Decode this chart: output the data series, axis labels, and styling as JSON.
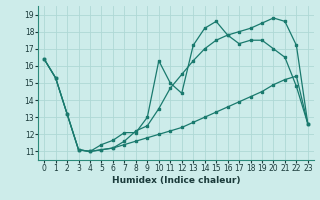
{
  "xlabel": "Humidex (Indice chaleur)",
  "background_color": "#cdecea",
  "line_color": "#1a7a6e",
  "grid_color": "#afd8d5",
  "x_ticks": [
    0,
    1,
    2,
    3,
    4,
    5,
    6,
    7,
    8,
    9,
    10,
    11,
    12,
    13,
    14,
    15,
    16,
    17,
    18,
    19,
    20,
    21,
    22,
    23
  ],
  "y_ticks": [
    11,
    12,
    13,
    14,
    15,
    16,
    17,
    18,
    19
  ],
  "ylim": [
    10.5,
    19.5
  ],
  "xlim": [
    -0.5,
    23.5
  ],
  "line1_x": [
    0,
    1,
    2,
    3,
    4,
    5,
    6,
    7,
    8,
    9,
    10,
    11,
    12,
    13,
    14,
    15,
    16,
    17,
    18,
    19,
    20,
    21,
    22,
    23
  ],
  "line1_y": [
    16.4,
    15.3,
    13.2,
    11.1,
    11.0,
    11.4,
    11.65,
    12.1,
    12.1,
    13.0,
    16.3,
    15.0,
    14.4,
    17.2,
    18.2,
    18.6,
    17.8,
    17.3,
    17.5,
    17.5,
    17.0,
    16.5,
    14.8,
    12.6
  ],
  "line2_x": [
    0,
    1,
    2,
    3,
    4,
    5,
    6,
    7,
    8,
    9,
    10,
    11,
    12,
    13,
    14,
    15,
    16,
    17,
    18,
    19,
    20,
    21,
    22,
    23
  ],
  "line2_y": [
    16.4,
    15.3,
    13.2,
    11.1,
    11.0,
    11.1,
    11.2,
    11.4,
    11.6,
    11.8,
    12.0,
    12.2,
    12.4,
    12.7,
    13.0,
    13.3,
    13.6,
    13.9,
    14.2,
    14.5,
    14.9,
    15.2,
    15.4,
    12.6
  ],
  "line3_x": [
    0,
    1,
    2,
    3,
    4,
    5,
    6,
    7,
    8,
    9,
    10,
    11,
    12,
    13,
    14,
    15,
    16,
    17,
    18,
    19,
    20,
    21,
    22,
    23
  ],
  "line3_y": [
    16.4,
    15.3,
    13.2,
    11.1,
    11.0,
    11.1,
    11.2,
    11.6,
    12.2,
    12.5,
    13.5,
    14.7,
    15.5,
    16.3,
    17.0,
    17.5,
    17.8,
    18.0,
    18.2,
    18.5,
    18.8,
    18.6,
    17.2,
    12.6
  ]
}
